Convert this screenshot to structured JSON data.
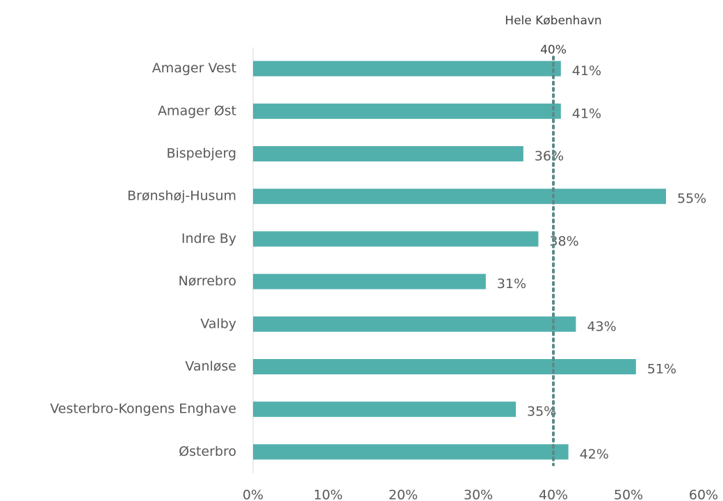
{
  "chart_data": {
    "type": "bar",
    "orientation": "horizontal",
    "categories": [
      "Amager Vest",
      "Amager Øst",
      "Bispebjerg",
      "Brønshøj-Husum",
      "Indre By",
      "Nørrebro",
      "Valby",
      "Vanløse",
      "Vesterbro-Kongens Enghave",
      "Østerbro"
    ],
    "values": [
      41,
      41,
      36,
      55,
      38,
      31,
      43,
      51,
      35,
      42
    ],
    "value_labels": [
      "41%",
      "41%",
      "36%",
      "55%",
      "38%",
      "31%",
      "43%",
      "51%",
      "35%",
      "42%"
    ],
    "color": "#52b0ac",
    "xlim": [
      0,
      60
    ],
    "xticks": [
      {
        "value": 0,
        "label": "0%"
      },
      {
        "value": 10,
        "label": "10%"
      },
      {
        "value": 20,
        "label": "20%"
      },
      {
        "value": 30,
        "label": "30%"
      },
      {
        "value": 40,
        "label": "40%"
      },
      {
        "value": 50,
        "label": "50%"
      },
      {
        "value": 60,
        "label": "60%"
      }
    ],
    "reference_line": {
      "value": 40,
      "label": "40%",
      "name": "Hele København",
      "color": "#5b8a8a"
    }
  }
}
